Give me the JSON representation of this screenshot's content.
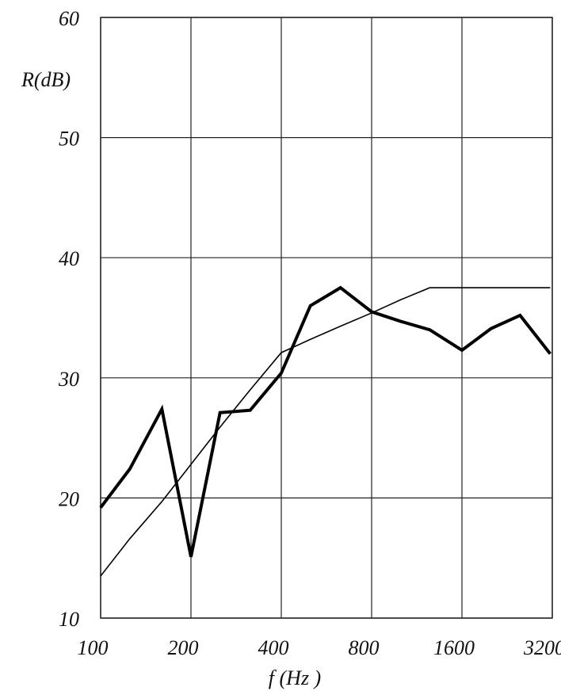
{
  "chart_data": {
    "type": "line",
    "ylabel": "R(dB)",
    "xlabel": "f (Hz )",
    "x": [
      100,
      125,
      160,
      200,
      250,
      315,
      400,
      500,
      630,
      800,
      1000,
      1250,
      1600,
      2000,
      2500,
      3150
    ],
    "series": [
      {
        "color": "#000000",
        "width": 4,
        "values": [
          19.2,
          22.4,
          27.4,
          15.1,
          27.1,
          27.3,
          30.4,
          36.0,
          37.5,
          35.5,
          34.7,
          34.0,
          32.3,
          34.1,
          35.2,
          32.0
        ]
      },
      {
        "color": "#000000",
        "width": 1.6,
        "values": [
          13.5,
          16.6,
          19.7,
          22.8,
          25.9,
          29.0,
          32.1,
          33.2,
          34.3,
          35.4,
          36.5,
          37.5,
          37.5,
          37.5,
          37.5,
          37.5
        ]
      }
    ],
    "xlim": [
      100,
      3200
    ],
    "xticks": [
      100,
      200,
      400,
      800,
      1600,
      3200
    ],
    "xscale": "log",
    "ylim": [
      10,
      60
    ],
    "yticks": [
      10,
      20,
      30,
      40,
      50,
      60
    ],
    "grid": true
  }
}
